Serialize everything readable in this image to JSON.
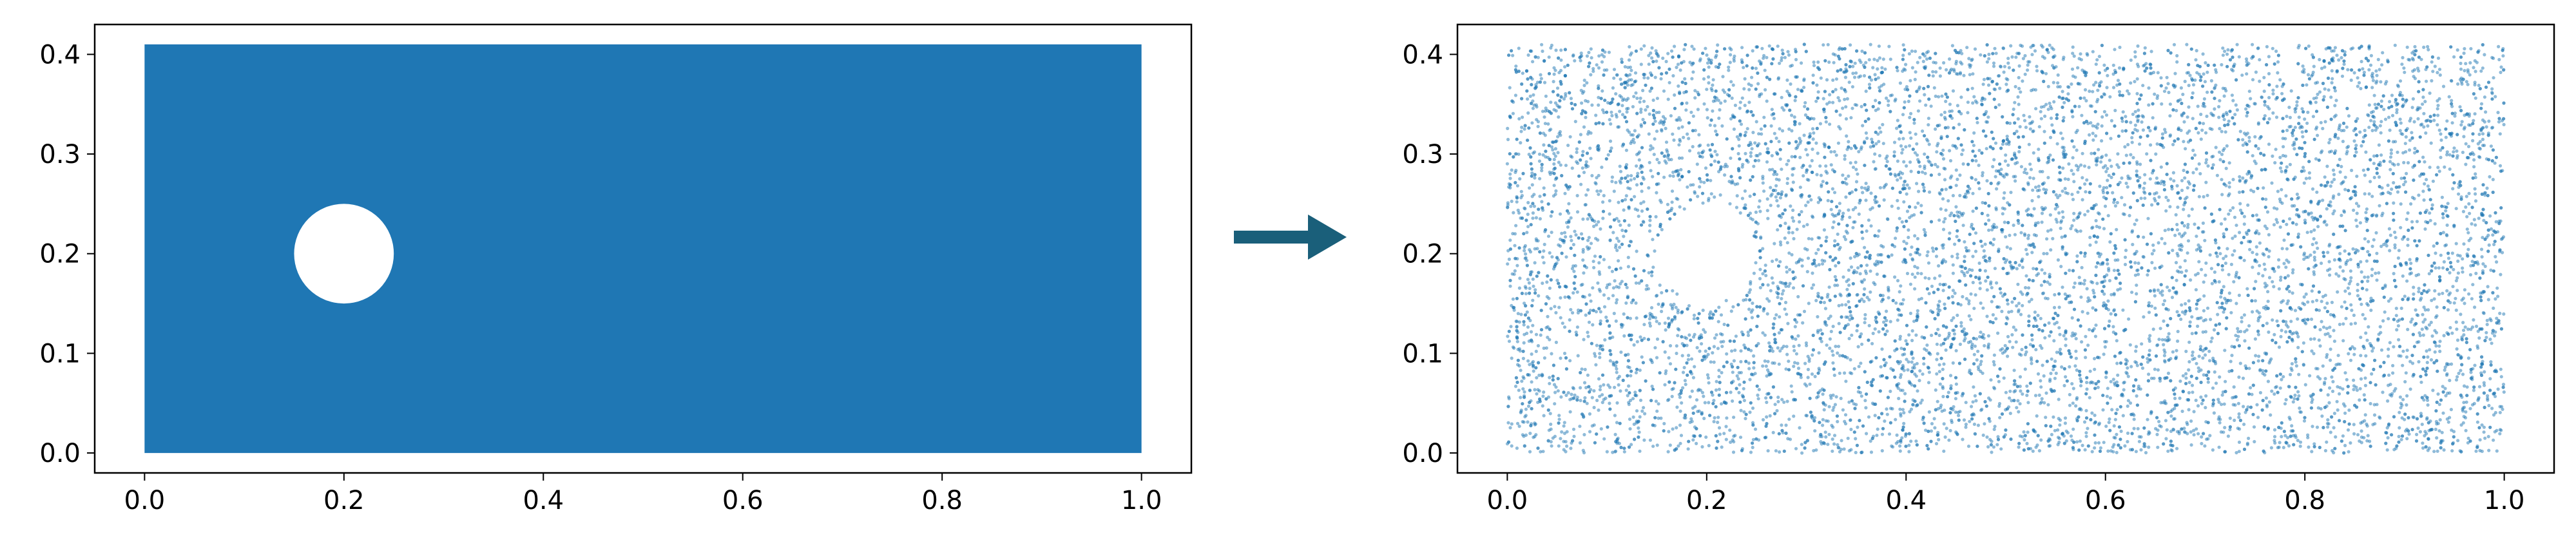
{
  "chart_data": [
    {
      "type": "area",
      "title": "",
      "xlabel": "",
      "ylabel": "",
      "xlim": [
        -0.05,
        1.05
      ],
      "ylim": [
        -0.02,
        0.43
      ],
      "xticks": [
        0.0,
        0.2,
        0.4,
        0.6,
        0.8,
        1.0
      ],
      "xtick_labels": [
        "0.0",
        "0.2",
        "0.4",
        "0.6",
        "0.8",
        "1.0"
      ],
      "yticks": [
        0.0,
        0.1,
        0.2,
        0.3,
        0.4
      ],
      "ytick_labels": [
        "0.0",
        "0.1",
        "0.2",
        "0.3",
        "0.4"
      ],
      "grid": false,
      "domain": {
        "rectangle": {
          "x": [
            0.0,
            1.0
          ],
          "y": [
            0.0,
            0.41
          ]
        },
        "hole": {
          "shape": "circle",
          "center": [
            0.2,
            0.2
          ],
          "radius": 0.05
        }
      },
      "fill_color": "#1f77b4"
    },
    {
      "type": "scatter",
      "title": "",
      "xlabel": "",
      "ylabel": "",
      "xlim": [
        -0.05,
        1.05
      ],
      "ylim": [
        -0.02,
        0.43
      ],
      "xticks": [
        0.0,
        0.2,
        0.4,
        0.6,
        0.8,
        1.0
      ],
      "xtick_labels": [
        "0.0",
        "0.2",
        "0.4",
        "0.6",
        "0.8",
        "1.0"
      ],
      "yticks": [
        0.0,
        0.1,
        0.2,
        0.3,
        0.4
      ],
      "ytick_labels": [
        "0.0",
        "0.1",
        "0.2",
        "0.3",
        "0.4"
      ],
      "grid": false,
      "description_of_points": "uniform random samples over x in [0,1], y in [0,0.41], excluding circle center (0.2,0.2) radius 0.05",
      "sample_region": {
        "x": [
          0.0,
          1.0
        ],
        "y": [
          0.0,
          0.41
        ]
      },
      "excluded_circle": {
        "center": [
          0.2,
          0.2
        ],
        "radius": 0.05
      },
      "approx_point_count": 10000,
      "point_color": "#1f77b4",
      "point_alpha": 0.5
    }
  ],
  "arrow": {
    "color": "#1a5f7a",
    "direction": "right"
  }
}
